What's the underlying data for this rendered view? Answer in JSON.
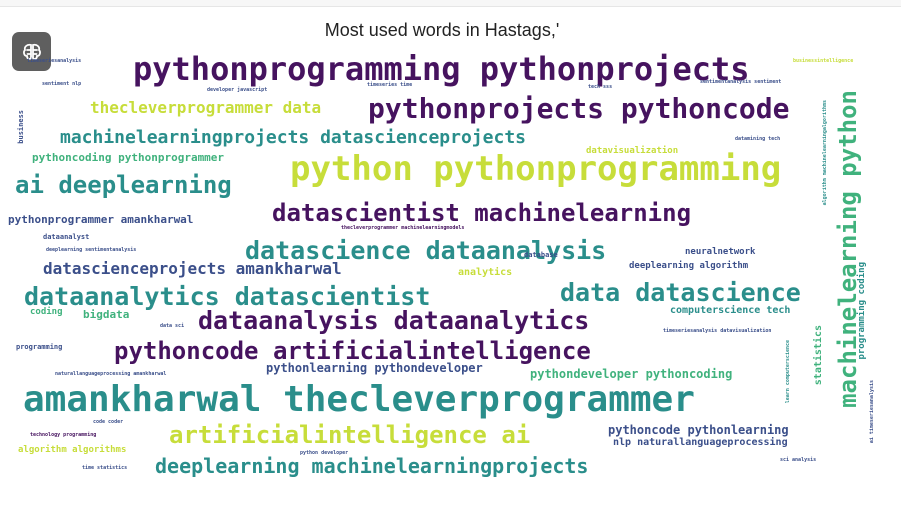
{
  "figure": {
    "title": "Most used words in Hastags,'",
    "toolbar_icon": "brain-icon"
  },
  "colors": {
    "purple": "#46135f",
    "dark": "#3b4f8a",
    "teal": "#2a8e8b",
    "green": "#40b27d",
    "lime": "#c7dd3a"
  },
  "words": [
    {
      "text": "pythonprogramming pythonprojects",
      "color": "purple"
    },
    {
      "text": "pythonprojects pythoncode",
      "color": "purple"
    },
    {
      "text": "thecleverprogrammer data",
      "color": "lime"
    },
    {
      "text": "machinelearningprojects datascienceprojects",
      "color": "teal"
    },
    {
      "text": "python pythonprogramming",
      "color": "lime"
    },
    {
      "text": "ai deeplearning",
      "color": "teal"
    },
    {
      "text": "pythoncoding pythonprogrammer",
      "color": "green"
    },
    {
      "text": "datascientist machinelearning",
      "color": "purple"
    },
    {
      "text": "pythonprogrammer amankharwal",
      "color": "dark"
    },
    {
      "text": "datascience dataanalysis",
      "color": "teal"
    },
    {
      "text": "datascienceprojects amankharwal",
      "color": "dark"
    },
    {
      "text": "dataanalytics datascientist",
      "color": "teal"
    },
    {
      "text": "data datascience",
      "color": "teal"
    },
    {
      "text": "dataanalysis dataanalytics",
      "color": "purple"
    },
    {
      "text": "pythoncode artificialintelligence",
      "color": "purple"
    },
    {
      "text": "pythonlearning pythondeveloper",
      "color": "dark"
    },
    {
      "text": "pythondeveloper pythoncoding",
      "color": "green"
    },
    {
      "text": "amankharwal thecleverprogrammer",
      "color": "teal"
    },
    {
      "text": "artificialintelligence ai",
      "color": "lime"
    },
    {
      "text": "pythoncode pythonlearning",
      "color": "dark"
    },
    {
      "text": "nlp naturallanguageprocessing",
      "color": "dark"
    },
    {
      "text": "deeplearning machinelearningprojects",
      "color": "teal"
    },
    {
      "text": "machinelearning python",
      "color": "green"
    },
    {
      "text": "neuralnetwork",
      "color": "dark"
    },
    {
      "text": "analytics",
      "color": "lime"
    },
    {
      "text": "deeplearning algorithm",
      "color": "dark"
    },
    {
      "text": "computerscience tech",
      "color": "teal"
    },
    {
      "text": "datavisualization",
      "color": "lime"
    },
    {
      "text": "bigdata",
      "color": "green"
    },
    {
      "text": "coding",
      "color": "green"
    },
    {
      "text": "database",
      "color": "dark"
    },
    {
      "text": "programming",
      "color": "dark"
    },
    {
      "text": "statistics",
      "color": "green"
    },
    {
      "text": "programming coding",
      "color": "teal"
    },
    {
      "text": "dataanalyst",
      "color": "dark"
    },
    {
      "text": "technology programming",
      "color": "purple"
    },
    {
      "text": "algorithm algorithms",
      "color": "lime"
    },
    {
      "text": "code coder",
      "color": "dark"
    },
    {
      "text": "business",
      "color": "dark"
    },
    {
      "text": "timeseriesanalysis",
      "color": "dark"
    },
    {
      "text": "sentiment nlp",
      "color": "dark"
    },
    {
      "text": "developer javascript",
      "color": "dark"
    },
    {
      "text": "timeseries time",
      "color": "dark"
    },
    {
      "text": "tech sss",
      "color": "dark"
    },
    {
      "text": "sentimentanalysis sentiment",
      "color": "dark"
    },
    {
      "text": "businessintelligence",
      "color": "lime"
    },
    {
      "text": "datamining tech",
      "color": "dark"
    },
    {
      "text": "deeplearning sentimentanalysis",
      "color": "dark"
    },
    {
      "text": "thecleverprogrammer machinelearningmodels",
      "color": "purple"
    },
    {
      "text": "data sci",
      "color": "dark"
    },
    {
      "text": "timeseriesanalysis datavisualization",
      "color": "dark"
    },
    {
      "text": "naturallanguageprocessing amankharwal",
      "color": "dark"
    },
    {
      "text": "python developer",
      "color": "dark"
    },
    {
      "text": "time statistics",
      "color": "dark"
    },
    {
      "text": "ai  timeseriesanalysis",
      "color": "dark"
    },
    {
      "text": "sci analysis",
      "color": "dark"
    },
    {
      "text": "algorithm machinelearningalgorithms",
      "color": "teal"
    },
    {
      "text": "learn computerscience",
      "color": "teal"
    }
  ]
}
